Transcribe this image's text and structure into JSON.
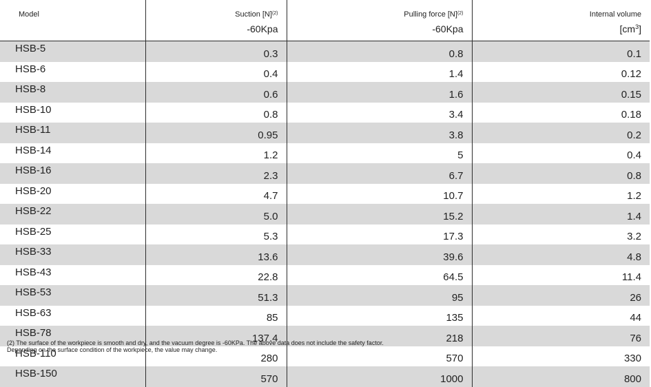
{
  "headers": {
    "model": "Model",
    "suction": {
      "label": "Suction [N]",
      "sup": "(2)",
      "sub": "-60Kpa"
    },
    "pulling": {
      "label": "Pulling force [N]",
      "sup": "(2)",
      "sub": "-60Kpa"
    },
    "volume": {
      "label": "Internal volume",
      "sub_pre": "[cm",
      "sub_sup": "3",
      "sub_post": "]"
    }
  },
  "rows": [
    {
      "model": "HSB-5",
      "suction": "0.3",
      "pulling": "0.8",
      "volume": "0.1"
    },
    {
      "model": "HSB-6",
      "suction": "0.4",
      "pulling": "1.4",
      "volume": "0.12"
    },
    {
      "model": "HSB-8",
      "suction": "0.6",
      "pulling": "1.6",
      "volume": "0.15"
    },
    {
      "model": "HSB-10",
      "suction": "0.8",
      "pulling": "3.4",
      "volume": "0.18"
    },
    {
      "model": "HSB-11",
      "suction": "0.95",
      "pulling": "3.8",
      "volume": "0.2"
    },
    {
      "model": "HSB-14",
      "suction": "1.2",
      "pulling": "5",
      "volume": "0.4"
    },
    {
      "model": "HSB-16",
      "suction": "2.3",
      "pulling": "6.7",
      "volume": "0.8"
    },
    {
      "model": "HSB-20",
      "suction": "4.7",
      "pulling": "10.7",
      "volume": "1.2"
    },
    {
      "model": "HSB-22",
      "suction": "5.0",
      "pulling": "15.2",
      "volume": "1.4"
    },
    {
      "model": "HSB-25",
      "suction": "5.3",
      "pulling": "17.3",
      "volume": "3.2"
    },
    {
      "model": "HSB-33",
      "suction": "13.6",
      "pulling": "39.6",
      "volume": "4.8"
    },
    {
      "model": "HSB-43",
      "suction": "22.8",
      "pulling": "64.5",
      "volume": "11.4"
    },
    {
      "model": "HSB-53",
      "suction": "51.3",
      "pulling": "95",
      "volume": "26"
    },
    {
      "model": "HSB-63",
      "suction": "85",
      "pulling": "135",
      "volume": "44"
    },
    {
      "model": "HSB-78",
      "suction": "137.4",
      "pulling": "218",
      "volume": "76"
    },
    {
      "model": "HSB-110",
      "suction": "280",
      "pulling": "570",
      "volume": "330"
    },
    {
      "model": "HSB-150",
      "suction": "570",
      "pulling": "1000",
      "volume": "800"
    }
  ],
  "footnote": {
    "line1": "(2) The surface of the workpiece is smooth and dry, and the vacuum degree is -60KPa. The above data does not include the safety factor.",
    "line2": "Depending on the surface condition of the workpiece, the value may change."
  },
  "colors": {
    "stripe": "#d9d9d9",
    "rule": "#2b2b2b"
  }
}
